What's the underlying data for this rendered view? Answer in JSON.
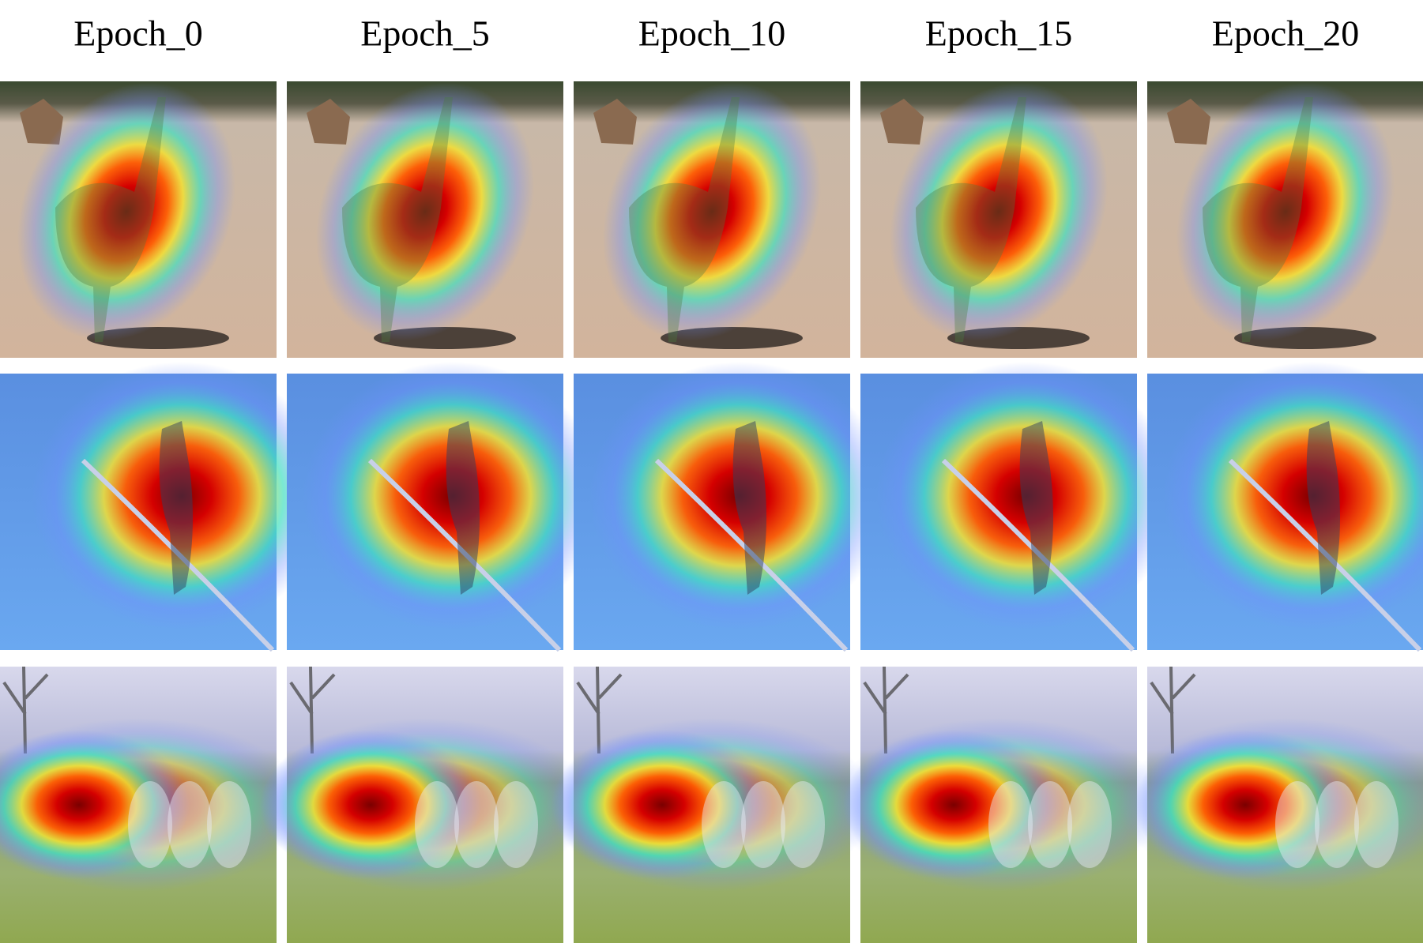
{
  "columns": [
    "Epoch_0",
    "Epoch_5",
    "Epoch_10",
    "Epoch_15",
    "Epoch_20"
  ]
}
